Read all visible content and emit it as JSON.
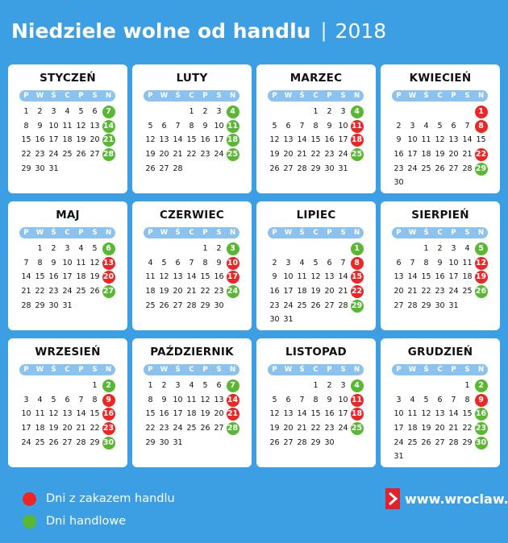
{
  "header": {
    "title": "Niedziele wolne od handlu",
    "separator": "|",
    "year": "2018"
  },
  "weekdays": [
    "P",
    "W",
    "Ś",
    "C",
    "P",
    "S",
    "N"
  ],
  "months": [
    {
      "name": "STYCZEŃ",
      "start": 0,
      "days": 31,
      "red": [],
      "green": [
        7,
        14,
        21,
        28
      ]
    },
    {
      "name": "LUTY",
      "start": 3,
      "days": 28,
      "red": [],
      "green": [
        4,
        11,
        18,
        25
      ]
    },
    {
      "name": "MARZEC",
      "start": 3,
      "days": 31,
      "red": [
        11,
        18
      ],
      "green": [
        4,
        25
      ]
    },
    {
      "name": "KWIECIEŃ",
      "start": 6,
      "days": 30,
      "red": [
        1,
        8,
        22
      ],
      "green": [
        29
      ]
    },
    {
      "name": "MAJ",
      "start": 1,
      "days": 31,
      "red": [
        13,
        20
      ],
      "green": [
        6,
        27
      ]
    },
    {
      "name": "CZERWIEC",
      "start": 4,
      "days": 30,
      "red": [
        10,
        17
      ],
      "green": [
        3,
        24
      ]
    },
    {
      "name": "LIPIEC",
      "start": 6,
      "days": 31,
      "red": [
        8,
        15,
        22
      ],
      "green": [
        1,
        29
      ]
    },
    {
      "name": "SIERPIEŃ",
      "start": 2,
      "days": 31,
      "red": [
        12,
        19
      ],
      "green": [
        5,
        26
      ]
    },
    {
      "name": "WRZESIEŃ",
      "start": 5,
      "days": 30,
      "red": [
        9,
        16,
        23
      ],
      "green": [
        2,
        30
      ]
    },
    {
      "name": "PAŹDZIERNIK",
      "start": 0,
      "days": 31,
      "red": [
        14,
        21
      ],
      "green": [
        7,
        28
      ]
    },
    {
      "name": "LISTOPAD",
      "start": 3,
      "days": 30,
      "red": [
        11,
        18
      ],
      "green": [
        4,
        25
      ]
    },
    {
      "name": "GRUDZIEŃ",
      "start": 5,
      "days": 31,
      "red": [
        9
      ],
      "green": [
        2,
        16,
        23,
        30
      ]
    }
  ],
  "legend": {
    "red_label": "Dni z zakazem handlu",
    "green_label": "Dni handlowe"
  },
  "colors": {
    "background": "#3d9fe3",
    "ban_sunday": "#ef2424",
    "trading_sunday": "#58b832"
  },
  "brand": {
    "text": "www.wroclaw.pl",
    "logo_icon": "chevron-right-icon"
  }
}
